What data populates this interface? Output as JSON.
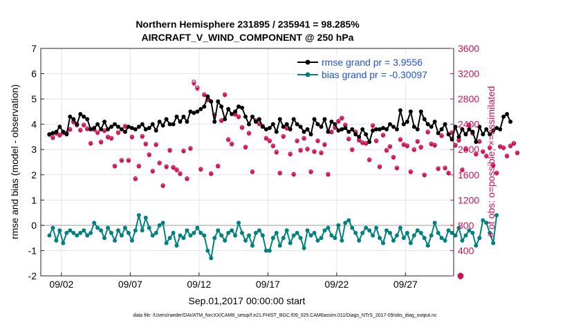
{
  "chart_data": {
    "type": "line",
    "title": "Northern Hemisphere 231895 / 235941 = 98.285%",
    "subtitle": "AIRCRAFT_V_WIND_COMPONENT @ 250 hPa",
    "xlabel": "Sep.01,2017 00:00:00 start",
    "ylabel": "rmse and bias (model - observation)",
    "y2label": "# of obs: o=possible; ×=assimilated",
    "footnote": "data file: /Users/raeder/DAI/ATM_forcXX/CAM6_setup/f.e21.FHIST_BGC.f09_025.CAM6assim.011/Diags_NTrS_2017-09/obs_diag_output.nc",
    "xlim": [
      0.5,
      30.5
    ],
    "ylim": [
      -2,
      7
    ],
    "y2lim": [
      0,
      3600
    ],
    "x_ticks": [
      {
        "value": 2,
        "label": "09/02"
      },
      {
        "value": 7,
        "label": "09/07"
      },
      {
        "value": 12,
        "label": "09/12"
      },
      {
        "value": 17,
        "label": "09/17"
      },
      {
        "value": 22,
        "label": "09/22"
      },
      {
        "value": 27,
        "label": "09/27"
      }
    ],
    "y_ticks": [
      {
        "value": -2,
        "label": "-2"
      },
      {
        "value": -1,
        "label": "-1"
      },
      {
        "value": 0,
        "label": "0"
      },
      {
        "value": 1,
        "label": "1"
      },
      {
        "value": 2,
        "label": "2"
      },
      {
        "value": 3,
        "label": "3"
      },
      {
        "value": 4,
        "label": "4"
      },
      {
        "value": 5,
        "label": "5"
      },
      {
        "value": 6,
        "label": "6"
      },
      {
        "value": 7,
        "label": "7"
      }
    ],
    "y2_ticks": [
      {
        "value": 0,
        "label": "0"
      },
      {
        "value": 400,
        "label": "400"
      },
      {
        "value": 800,
        "label": "800"
      },
      {
        "value": 1200,
        "label": "1200"
      },
      {
        "value": 1600,
        "label": "1600"
      },
      {
        "value": 2000,
        "label": "2000"
      },
      {
        "value": 2400,
        "label": "2400"
      },
      {
        "value": 2800,
        "label": "2800"
      },
      {
        "value": 3200,
        "label": "3200"
      },
      {
        "value": 3600,
        "label": "3600"
      }
    ],
    "zero_line": 0,
    "x_start": 1.125,
    "x_step": 0.25,
    "series": [
      {
        "name": "rmse",
        "legend": "rmse grand pr = 3.9556",
        "color": "#000000",
        "axis": "left",
        "values": [
          3.6,
          3.65,
          3.7,
          3.9,
          3.7,
          3.6,
          4.3,
          4.2,
          4.0,
          4.4,
          4.3,
          4.2,
          3.8,
          3.85,
          4.0,
          3.8,
          4.1,
          3.8,
          3.9,
          4.0,
          3.9,
          3.8,
          3.7,
          3.9,
          3.85,
          3.8,
          3.9,
          4.0,
          3.8,
          3.85,
          4.0,
          3.75,
          4.1,
          3.95,
          4.2,
          4.0,
          4.0,
          4.3,
          4.1,
          4.3,
          4.1,
          4.5,
          4.45,
          4.5,
          4.6,
          4.7,
          5.1,
          4.9,
          4.1,
          4.9,
          4.7,
          4.2,
          4.6,
          4.4,
          4.5,
          4.7,
          4.65,
          4.3,
          4.0,
          4.3,
          4.1,
          4.2,
          3.9,
          3.8,
          3.85,
          4.0,
          3.7,
          4.2,
          3.9,
          4.0,
          3.8,
          4.2,
          4.0,
          3.9,
          3.7,
          3.8,
          3.6,
          4.2,
          4.0,
          3.9,
          4.2,
          3.7,
          4.1,
          4.0,
          3.75,
          3.8,
          3.85,
          3.7,
          3.8,
          3.6,
          3.5,
          3.8,
          3.6,
          3.3,
          3.75,
          3.8,
          3.8,
          3.85,
          3.8,
          4.0,
          3.9,
          3.8,
          4.55,
          4.0,
          4.1,
          4.5,
          3.9,
          3.8,
          4.5,
          4.2,
          4.0,
          3.9,
          4.1,
          3.65,
          3.8,
          4.0,
          3.6,
          3.4,
          3.9,
          3.5,
          3.8,
          3.6,
          3.8,
          3.7,
          3.3,
          3.9,
          3.6,
          3.8,
          3.6,
          3.75,
          3.85,
          3.8,
          4.3,
          4.4,
          4.1
        ]
      },
      {
        "name": "bias",
        "legend": "bias grand pr = -0.30097",
        "color": "#00807f",
        "axis": "left",
        "values": [
          -0.4,
          -0.1,
          -0.6,
          -0.2,
          -0.7,
          -0.3,
          -0.2,
          -0.3,
          -0.4,
          -0.3,
          -0.2,
          -0.4,
          -0.3,
          0.1,
          -0.1,
          -0.2,
          -0.5,
          -0.1,
          -0.3,
          -0.6,
          -0.2,
          -0.4,
          -0.1,
          -0.3,
          -0.6,
          -0.2,
          0.4,
          -0.2,
          0.3,
          -0.1,
          -0.4,
          -0.3,
          0.0,
          0.1,
          -0.7,
          -0.5,
          -0.3,
          -0.8,
          -0.4,
          -0.5,
          -0.2,
          -0.4,
          -0.3,
          -0.1,
          -0.3,
          -0.4,
          -1.0,
          -1.3,
          -0.5,
          -0.2,
          -0.4,
          -0.6,
          -0.3,
          -0.2,
          -0.4,
          0.1,
          -0.3,
          -0.6,
          -0.4,
          -0.8,
          -0.3,
          -0.2,
          -0.4,
          -1.0,
          -1.0,
          -0.5,
          -0.3,
          -0.8,
          -0.5,
          -0.2,
          -0.7,
          -0.4,
          -0.3,
          -0.5,
          -0.9,
          -0.2,
          -0.4,
          -0.3,
          -0.6,
          -0.5,
          -0.2,
          -0.1,
          -0.4,
          -0.5,
          0.0,
          -0.6,
          0.1,
          0.2,
          -0.1,
          -0.3,
          -0.6,
          -0.3,
          -0.1,
          -0.2,
          -0.4,
          -0.1,
          -0.5,
          -0.7,
          -0.2,
          -0.3,
          -0.6,
          -0.4,
          -0.1,
          -0.5,
          -0.3,
          -0.7,
          -0.4,
          -0.2,
          -0.3,
          -0.5,
          -0.8,
          -0.4,
          0.1,
          -0.3,
          -0.5,
          -0.6,
          -0.2,
          -0.3,
          -0.4,
          -0.1,
          -0.6,
          -0.4,
          -0.2,
          -0.3,
          -0.8,
          -0.5,
          0.2,
          0.1,
          -0.3,
          -0.7,
          0.4
        ]
      }
    ],
    "obs_color": "#cc1155",
    "obs_possible": [
      2240,
      2190,
      2260,
      2230,
      2270,
      2260,
      2320,
      2440,
      2390,
      2310,
      2390,
      2330,
      2100,
      2320,
      2270,
      2120,
      2300,
      2200,
      2180,
      1740,
      2270,
      1830,
      2370,
      1830,
      2200,
      1540,
      1740,
      2210,
      2090,
      1920,
      1660,
      2080,
      1790,
      1430,
      1730,
      1990,
      1720,
      1680,
      1620,
      1980,
      1540,
      2020,
      3070,
      2980,
      1690,
      2870,
      2790,
      1620,
      2550,
      1740,
      2460,
      2870,
      2160,
      2090,
      2560,
      2520,
      2350,
      2040,
      2260,
      1650,
      2460,
      2410,
      2370,
      2180,
      2140,
      2060,
      1960,
      1630,
      2210,
      2340,
      1930,
      1610,
      2140,
      1990,
      2180,
      2010,
      1650,
      1970,
      2140,
      1950,
      2080,
      1610,
      2280,
      2350,
      2450,
      2500,
      2390,
      2170,
      2000,
      2280,
      2150,
      2110,
      2100,
      1840,
      2380,
      2140,
      1730,
      2230,
      1990,
      2050,
      1880,
      1710,
      2160,
      2080,
      2060,
      1650,
      2000,
      2130,
      2040,
      1600,
      2280,
      2090,
      2070,
      1700,
      2220,
      1710,
      1630,
      2270,
      2070,
      2150,
      1680,
      2010,
      2390,
      2260,
      1930,
      2130,
      1970,
      1900,
      2030,
      1750,
      1630,
      2050,
      2030,
      1900,
      2060,
      2100,
      1950
    ],
    "obs_assimilated": [
      2230,
      2180,
      2250,
      2220,
      2260,
      2250,
      2310,
      2430,
      2380,
      2300,
      2380,
      2320,
      2090,
      2310,
      2260,
      2110,
      2290,
      2190,
      2170,
      1730,
      2260,
      1820,
      2360,
      1820,
      2190,
      1530,
      1730,
      2200,
      2080,
      1910,
      1650,
      2070,
      1780,
      1420,
      1720,
      1980,
      1710,
      1670,
      1610,
      1970,
      1530,
      2010,
      3040,
      2960,
      1680,
      2860,
      2780,
      1610,
      2540,
      1730,
      2450,
      2860,
      2150,
      2080,
      2550,
      2510,
      2340,
      2030,
      2250,
      1640,
      2450,
      2400,
      2360,
      2170,
      2130,
      2050,
      1950,
      1620,
      2200,
      2330,
      1920,
      1600,
      2130,
      1980,
      2170,
      2000,
      1640,
      1960,
      2130,
      1940,
      2070,
      1600,
      2270,
      2340,
      2440,
      2490,
      2380,
      2160,
      1990,
      2270,
      2140,
      2100,
      2090,
      1830,
      2370,
      2130,
      1720,
      2220,
      1980,
      2040,
      1870,
      1700,
      2150,
      2070,
      2050,
      1640,
      1990,
      2120,
      2030,
      1590,
      2270,
      2080,
      2060,
      1690,
      2210,
      1700,
      1620,
      2260,
      2060,
      2140,
      1670,
      2000,
      2380,
      2250,
      1920,
      2120,
      1960,
      1890,
      2020,
      1740,
      1620,
      2040,
      2020,
      1890,
      2050,
      2090,
      1940
    ],
    "obs_end_marker": {
      "x": 31,
      "value": 0
    }
  }
}
